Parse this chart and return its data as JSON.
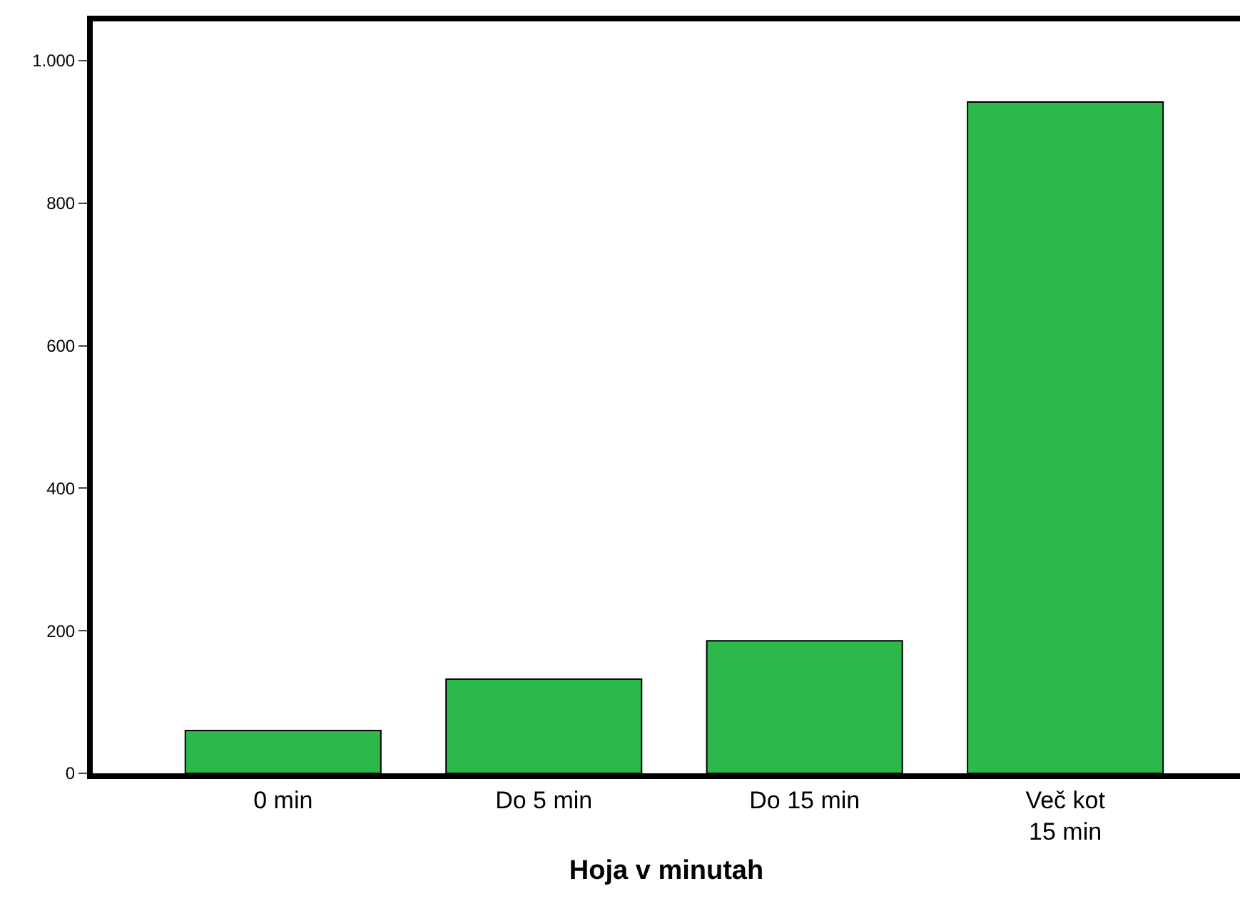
{
  "chart_data": {
    "type": "bar",
    "xlabel": "Hoja v minutah",
    "categories": [
      "0 min",
      "Do 5 min",
      "Do 15 min",
      "Več kot 15 min"
    ],
    "values": [
      60,
      132,
      186,
      942
    ],
    "color": "#2db84b",
    "ylim": [
      0,
      1055
    ],
    "yticks": [
      0,
      200,
      400,
      600,
      800,
      {
        "value": 1000,
        "label": "1.000"
      }
    ],
    "tick_labels": [
      "x",
      "y"
    ]
  }
}
